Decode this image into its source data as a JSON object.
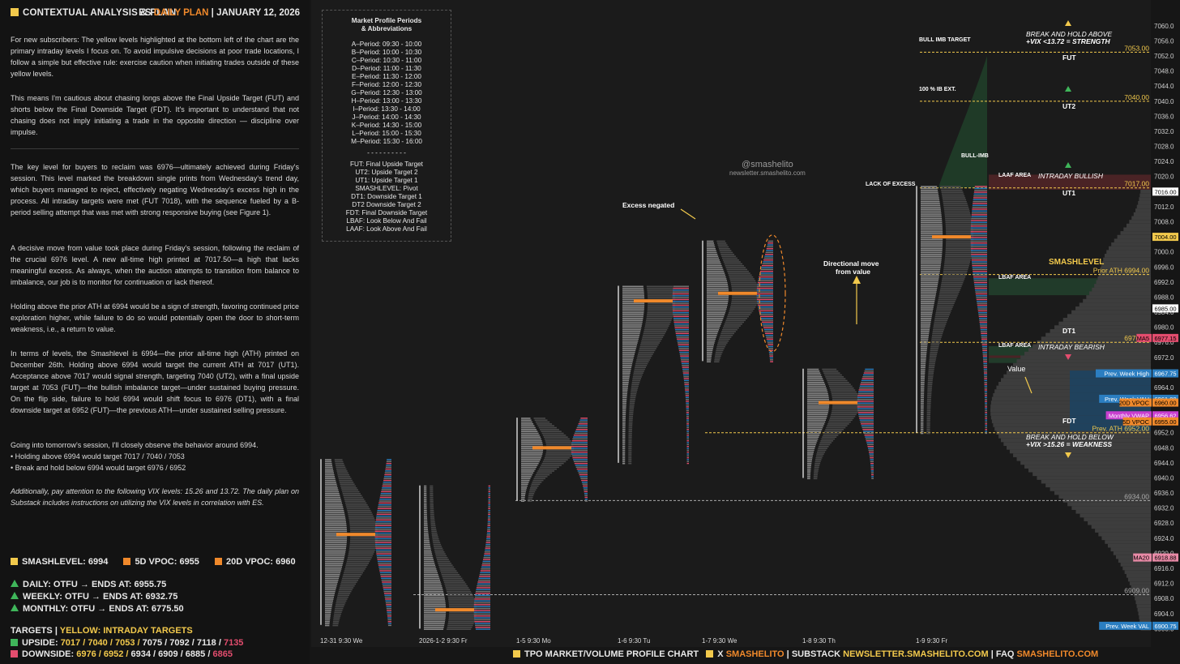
{
  "header": {
    "left_title": "CONTEXTUAL ANALYSIS & PLAN",
    "right_prefix": "ES",
    "right_accent": "DAILY PLAN",
    "right_sep": "|",
    "right_date": "JANUARY 12, 2026"
  },
  "paragraphs": {
    "p1": "For new subscribers: The yellow levels highlighted at the bottom left of the chart are the primary intraday levels I focus on. To avoid impulsive decisions at poor trade locations, I follow a simple but effective rule: exercise caution when initiating trades outside of these yellow levels.",
    "p2": "This means I'm cautious about chasing longs above the Final Upside Target (FUT) and shorts below the Final Downside Target (FDT). It's important to understand that not chasing does not imply initiating a trade in the opposite direction — discipline over impulse.",
    "p3": "The key level for buyers to reclaim was 6976—ultimately achieved during Friday's session. This level marked the breakdown single prints from Wednesday's trend day, which buyers managed to reject, effectively negating Wednesday's excess high in the process. All intraday targets were met (FUT 7018), with the sequence fueled by a B-period selling attempt that was met with strong responsive buying (see Figure 1).",
    "p4": "A decisive move from value took place during Friday's session, following the reclaim of the crucial 6976 level. A new all-time high printed at 7017.50—a high that lacks meaningful excess. As always, when the auction attempts to transition from balance to imbalance, our job is to monitor for continuation or lack thereof.",
    "p5": "Holding above the prior ATH at 6994 would be a sign of strength, favoring continued price exploration higher, while failure to do so would potentially open the door to short-term weakness, i.e., a return to value.",
    "p6": "In terms of levels, the Smashlevel is 6994—the prior all-time high (ATH) printed on December 26th. Holding above 6994 would target the current ATH at 7017 (UT1). Acceptance above 7017 would signal strength, targeting 7040 (UT2), with a final upside target at 7053 (FUT)—the bullish imbalance target—under sustained buying pressure. On the flip side, failure to hold 6994 would shift focus to 6976 (DT1), with a final downside target at 6952 (FUT)—the previous ATH—under sustained selling pressure.",
    "p7a": "Going into tomorrow's session, I'll closely observe the behavior around 6994.",
    "p7b": "• Holding above 6994 would target 7017 / 7040 / 7053",
    "p7c": "• Break and hold below 6994 would target 6976 / 6952",
    "p8": "Additionally, pay attention to the following VIX levels: 15.26 and 13.72. The daily plan on Substack includes instructions on utilizing the VIX levels in correlation with ES."
  },
  "levels": {
    "smash": "SMASHLEVEL: 6994",
    "vpoc5": "5D VPOC: 6955",
    "vpoc20": "20D VPOC: 6960"
  },
  "otfu": {
    "daily": "DAILY: OTFU → ENDS AT: 6955.75",
    "weekly": "WEEKLY: OTFU → ENDS AT: 6932.75",
    "monthly": "MONTHLY: OTFU → ENDS AT: 6775.50"
  },
  "targets": {
    "title": "TARGETS",
    "sep": "|",
    "yellow_label": "YELLOW: INTRADAY TARGETS",
    "up_label": "UPSIDE:",
    "up_yellow": "7017 / 7040 / 7053 /",
    "up_rest": "7075 / 7092 / 7118 /",
    "up_last": "7135",
    "down_label": "DOWNSIDE:",
    "down_yellow": "6976 / 6952 /",
    "down_rest": "6934 / 6909 / 6885 /",
    "down_last": "6865"
  },
  "abbr": {
    "title1": "Market Profile Periods",
    "title2": "& Abbreviations",
    "periods": [
      "A–Period: 09:30 - 10:00",
      "B–Period: 10:00 - 10:30",
      "C–Period: 10:30 - 11:00",
      "D–Period: 11:00 - 11:30",
      "E–Period: 11:30 - 12:00",
      "F–Period: 12:00 - 12:30",
      "G–Period: 12:30 - 13:00",
      "H–Period: 13:00 - 13:30",
      "I–Period: 13:30 - 14:00",
      "J–Period: 14:00 - 14:30",
      "K–Period: 14:30 - 15:00",
      "L–Period: 15:00 - 15:30",
      "M–Period: 15:30 - 16:00"
    ],
    "divider": "- - - - - - - - - -",
    "abbrs": [
      "FUT: Final Upside Target",
      "UT2: Upside Target 2",
      "UT1: Upside Target 1",
      "SMASHLEVEL: Pivot",
      "DT1: Downside Target 1",
      "DT2 Downside Target 2",
      "FDT: Final Downside Target",
      "LBAF: Look Below And Fail",
      "LAAF: Look Above And Fail"
    ]
  },
  "watermark": {
    "handle": "@smashelito",
    "site": "newsletter.smashelito.com"
  },
  "annotations": {
    "excess": "Excess negated",
    "directional1": "Directional move",
    "directional2": "from value",
    "value": "Value",
    "bull_imb_target": "BULL IMB TARGET",
    "ib_ext": "100 % IB EXT.",
    "bull_imb": "BULL-IMB",
    "lack_excess": "LACK OF EXCESS",
    "break_above1": "BREAK AND HOLD ABOVE",
    "break_above2": "+VIX <13.72 = STRENGTH",
    "break_below1": "BREAK AND HOLD BELOW",
    "break_below2": "+VIX >15.26 = WEAKNESS",
    "fut": "FUT",
    "ut2": "UT2",
    "ut1": "UT1",
    "dt1": "DT1",
    "fdt": "FDT",
    "smashlevel": "SMASHLEVEL",
    "laaf": "LAAF AREA",
    "lbaf1": "LBAF AREA",
    "lbaf2": "LBAF AREA",
    "intraday_bullish": "INTRADAY BULLISH",
    "intraday_bearish": "INTRADAY BEARISH"
  },
  "footer": {
    "a": "TPO MARKET/VOLUME PROFILE CHART",
    "b": "X",
    "b2": "SMASHELITO",
    "sep1": "|",
    "c": "SUBSTACK",
    "c2": "NEWSLETTER.SMASHELITO.COM",
    "sep2": "|",
    "d": "FAQ",
    "d2": "SMASHELITO.COM"
  },
  "chart_data": {
    "type": "table",
    "title": "",
    "y_axis": {
      "min": 6899,
      "max": 7066,
      "ticks": [
        7060,
        7056,
        7052,
        7048,
        7044,
        7040,
        7036,
        7032,
        7028,
        7024,
        7020,
        7016,
        7012,
        7008,
        7004,
        7000,
        6996,
        6992,
        6988,
        6984,
        6980,
        6976,
        6972,
        6968,
        6964,
        6960,
        6956,
        6952,
        6948,
        6944,
        6940,
        6936,
        6932,
        6928,
        6924,
        6920,
        6916,
        6912,
        6908,
        6904,
        6900
      ]
    },
    "sessions": [
      {
        "label": "12-31  9:30 We",
        "low": 6901,
        "high": 6945,
        "poc": 6925
      },
      {
        "label": "2026-1-2  9:30 Fr",
        "low": 6900,
        "high": 6938,
        "poc": 6905
      },
      {
        "label": "1-5  9:30 Mo",
        "low": 6934,
        "high": 6956,
        "poc": 6948
      },
      {
        "label": "1-6  9:30 Tu",
        "low": 6944,
        "high": 6991,
        "poc": 6987
      },
      {
        "label": "1-7  9:30 We",
        "low": 6971,
        "high": 7003,
        "poc": 6989
      },
      {
        "label": "1-8  9:30 Th",
        "low": 6940,
        "high": 6969,
        "poc": 6960
      },
      {
        "label": "1-9  9:30 Fr",
        "low": 6952,
        "high": 7017.5,
        "poc": 7004
      }
    ],
    "price_labels": [
      {
        "text": "7053.00",
        "value": 7053,
        "color": "#f2c94c"
      },
      {
        "text": "7040.00",
        "value": 7040,
        "color": "#f2c94c"
      },
      {
        "text": "7017.00",
        "value": 7017,
        "color": "#f2c94c"
      },
      {
        "text": "Prior ATH 6994.00",
        "value": 6994,
        "color": "#f2c94c"
      },
      {
        "text": "6976.00",
        "value": 6976,
        "color": "#f2c94c"
      },
      {
        "text": "Prev. ATH 6952.00",
        "value": 6952,
        "color": "#f2c94c"
      },
      {
        "text": "6934.00",
        "value": 6934,
        "color": "#aaaaaa"
      },
      {
        "text": "6909.00",
        "value": 6909,
        "color": "#aaaaaa"
      }
    ],
    "axis_tags": [
      {
        "text": "7016.00",
        "value": 7016,
        "bg": "#ffffff",
        "fg": "#000000"
      },
      {
        "text": "7004.00",
        "value": 7004,
        "bg": "#f2c94c",
        "fg": "#000000"
      },
      {
        "text": "6985.00",
        "value": 6985,
        "bg": "#ffffff",
        "fg": "#000000"
      },
      {
        "text": "6977.15",
        "value": 6977.15,
        "bg": "#e34d6e",
        "fg": "#000000",
        "name": "MA5"
      },
      {
        "text": "6967.75",
        "value": 6967.75,
        "bg": "#2b7ec1",
        "fg": "#ffffff",
        "name": "Prev. Week High"
      },
      {
        "text": "6961.00",
        "value": 6961,
        "bg": "#2b7ec1",
        "fg": "#ffffff",
        "name": "Prev. Week VAH"
      },
      {
        "text": "6960.00",
        "value": 6960,
        "bg": "#f0892b",
        "fg": "#000000",
        "name": "20D VPOC"
      },
      {
        "text": "6956.62",
        "value": 6956.62,
        "bg": "#c93fd0",
        "fg": "#ffffff",
        "name": "Monthly VWAP"
      },
      {
        "text": "6955.00",
        "value": 6955,
        "bg": "#f0892b",
        "fg": "#000000",
        "name": "5D VPOC"
      },
      {
        "text": "6918.88",
        "value": 6918.88,
        "bg": "#e88aa6",
        "fg": "#000000",
        "name": "MA20"
      },
      {
        "text": "6900.75",
        "value": 6900.75,
        "bg": "#2b7ec1",
        "fg": "#ffffff",
        "name": "Prev. Week VAL"
      }
    ]
  },
  "colors": {
    "accent": "#f2c94c",
    "orange": "#f0892b",
    "red": "#e34d6e",
    "blue": "#2b7ec1",
    "green": "#3fb65a"
  }
}
